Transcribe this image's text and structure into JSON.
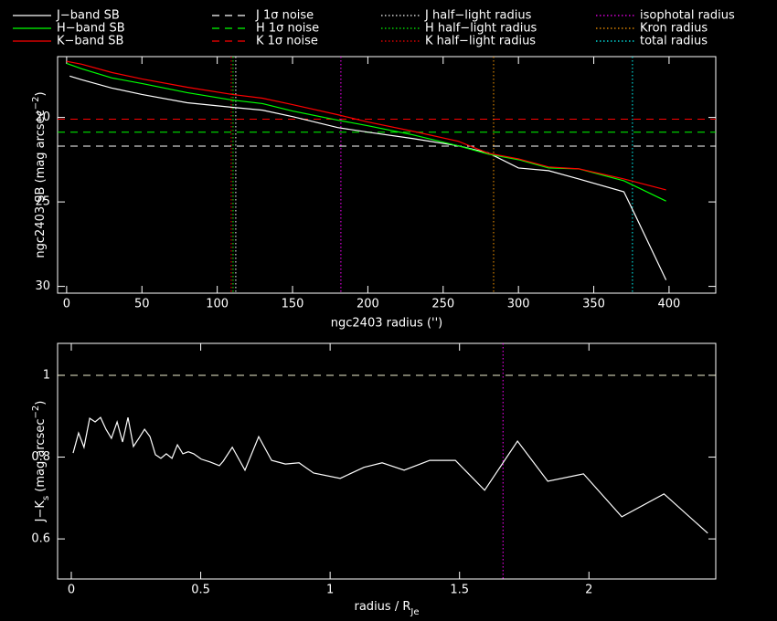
{
  "chart_data": [
    {
      "type": "line",
      "xlabel": "ngc2403 radius ('')",
      "ylabel": [
        "ngc2403 SB (mag arcsec",
        "−2",
        ")"
      ],
      "xlim": [
        -6,
        431
      ],
      "ylim": [
        30.4,
        16.4
      ],
      "xticks": [
        0,
        50,
        100,
        150,
        200,
        250,
        300,
        350,
        400
      ],
      "yticks": [
        20,
        25,
        30
      ],
      "series": [
        {
          "name": "J−band SB",
          "color": "#ffffff",
          "linestyle": "solid",
          "x": [
            2,
            10,
            30,
            50,
            80,
            110,
            130,
            150,
            180,
            200,
            230,
            260,
            280,
            300,
            320,
            340,
            370,
            378,
            398
          ],
          "values": [
            17.55,
            17.77,
            18.26,
            18.64,
            19.13,
            19.4,
            19.57,
            19.95,
            20.6,
            20.87,
            21.25,
            21.68,
            22.1,
            22.99,
            23.15,
            23.64,
            24.4,
            25.87,
            29.62
          ]
        },
        {
          "name": "H−band SB",
          "color": "#00ff00",
          "linestyle": "solid",
          "x": [
            0,
            10,
            30,
            50,
            80,
            110,
            130,
            150,
            180,
            200,
            230,
            260,
            280,
            300,
            320,
            340,
            370,
            398
          ],
          "values": [
            16.8,
            17.12,
            17.66,
            17.99,
            18.53,
            18.97,
            19.18,
            19.62,
            20.16,
            20.49,
            21.03,
            21.68,
            22.17,
            22.5,
            22.99,
            23.04,
            23.75,
            24.95
          ]
        },
        {
          "name": "K−band SB",
          "color": "#ff0000",
          "linestyle": "solid",
          "x": [
            0,
            10,
            30,
            50,
            80,
            110,
            130,
            150,
            180,
            200,
            230,
            260,
            280,
            300,
            320,
            340,
            370,
            398
          ],
          "values": [
            16.68,
            16.85,
            17.34,
            17.72,
            18.21,
            18.64,
            18.86,
            19.24,
            19.84,
            20.27,
            20.82,
            21.41,
            22.12,
            22.45,
            22.93,
            23.04,
            23.64,
            24.29
          ]
        }
      ],
      "hlines": [
        {
          "name": "J 1σ noise",
          "color": "#ffffff",
          "linestyle": "dashed",
          "value": 21.7
        },
        {
          "name": "H 1σ noise",
          "color": "#00ff00",
          "linestyle": "dashed",
          "value": 20.87
        },
        {
          "name": "K 1σ noise",
          "color": "#ff0000",
          "linestyle": "dashed",
          "value": 20.1
        }
      ],
      "vlines": [
        {
          "name": "J half−light radius",
          "color": "#ffffff",
          "linestyle": "dotted",
          "value": 112.3
        },
        {
          "name": "H half−light radius",
          "color": "#00ff00",
          "linestyle": "dotted",
          "value": 110.5
        },
        {
          "name": "K half−light radius",
          "color": "#ff0000",
          "linestyle": "dotted",
          "value": 109.3
        },
        {
          "name": "isophotal radius",
          "color": "#ff00ff",
          "linestyle": "dotted",
          "value": 182.1
        },
        {
          "name": "Kron radius",
          "color": "#ff9900",
          "linestyle": "dotted",
          "value": 283.5
        },
        {
          "name": "total radius",
          "color": "#00ffff",
          "linestyle": "dotted",
          "value": 375.7
        }
      ]
    },
    {
      "type": "line",
      "xlabel": [
        "radius / R",
        "Je"
      ],
      "ylabel": [
        "J−K",
        "s",
        " (mag arcsec",
        "−2",
        ")"
      ],
      "xlim": [
        -0.053,
        2.49
      ],
      "ylim": [
        0.502,
        1.078
      ],
      "xticks": [
        0,
        0.5,
        1,
        1.5,
        2
      ],
      "yticks": [
        0.6,
        0.8,
        1
      ],
      "series": [
        {
          "color": "#ffffff",
          "linestyle": "solid",
          "x": [
            0.007,
            0.028,
            0.049,
            0.071,
            0.092,
            0.113,
            0.134,
            0.155,
            0.177,
            0.198,
            0.219,
            0.24,
            0.261,
            0.283,
            0.304,
            0.325,
            0.346,
            0.367,
            0.389,
            0.41,
            0.431,
            0.452,
            0.473,
            0.502,
            0.537,
            0.572,
            0.587,
            0.622,
            0.671,
            0.724,
            0.774,
            0.827,
            0.88,
            0.936,
            1.039,
            1.131,
            1.201,
            1.286,
            1.385,
            1.484,
            1.597,
            1.724,
            1.841,
            1.979,
            2.127,
            2.29,
            2.459
          ],
          "values": [
            0.81,
            0.859,
            0.824,
            0.895,
            0.886,
            0.897,
            0.868,
            0.846,
            0.886,
            0.837,
            0.897,
            0.826,
            0.846,
            0.868,
            0.85,
            0.806,
            0.797,
            0.808,
            0.797,
            0.83,
            0.808,
            0.813,
            0.808,
            0.795,
            0.788,
            0.779,
            0.79,
            0.824,
            0.768,
            0.85,
            0.792,
            0.783,
            0.786,
            0.761,
            0.748,
            0.775,
            0.786,
            0.768,
            0.792,
            0.792,
            0.719,
            0.839,
            0.741,
            0.759,
            0.654,
            0.71,
            0.614
          ]
        }
      ],
      "hlines": [
        {
          "color": "#f0f0d0",
          "linestyle": "dashed",
          "value": 1
        }
      ],
      "vlines": [
        {
          "color": "#ff00ff",
          "linestyle": "dotted",
          "value": 1.668
        }
      ]
    }
  ]
}
